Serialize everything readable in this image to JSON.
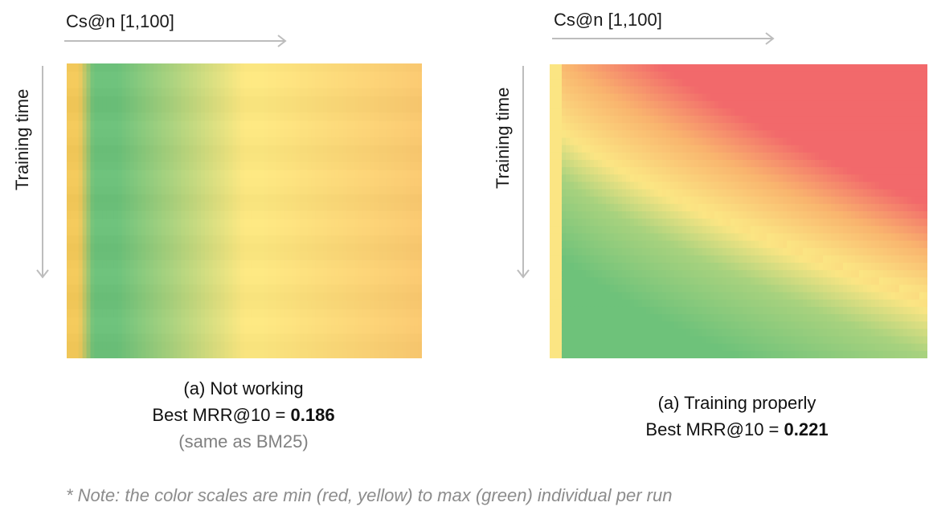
{
  "chart_data": [
    {
      "type": "heatmap",
      "id": "left",
      "xlabel": "Cs@n [1,100]",
      "ylabel": "Training time",
      "caption": {
        "title": "(a) Not working",
        "metric_prefix": "Best MRR@10 = ",
        "metric_value": "0.186",
        "note": "(same as BM25)"
      },
      "colors": {
        "left_edge": "#f2c85a",
        "green": "#6cc07a",
        "yellow": "#fbe680",
        "orange": "#f9c870"
      }
    },
    {
      "type": "heatmap",
      "id": "right",
      "xlabel": "Cs@n [1,100]",
      "ylabel": "Training time",
      "caption": {
        "title": "(a) Training properly",
        "metric_prefix": "Best MRR@10 = ",
        "metric_value": "0.221"
      },
      "colors": {
        "red": "#f2696b",
        "orange": "#f9b46e",
        "yellow": "#fbe583",
        "light_green": "#a8d27e",
        "green": "#6ec27a"
      }
    }
  ],
  "footnote": "* Note: the color scales are min (red, yellow) to max (green) individual per run"
}
